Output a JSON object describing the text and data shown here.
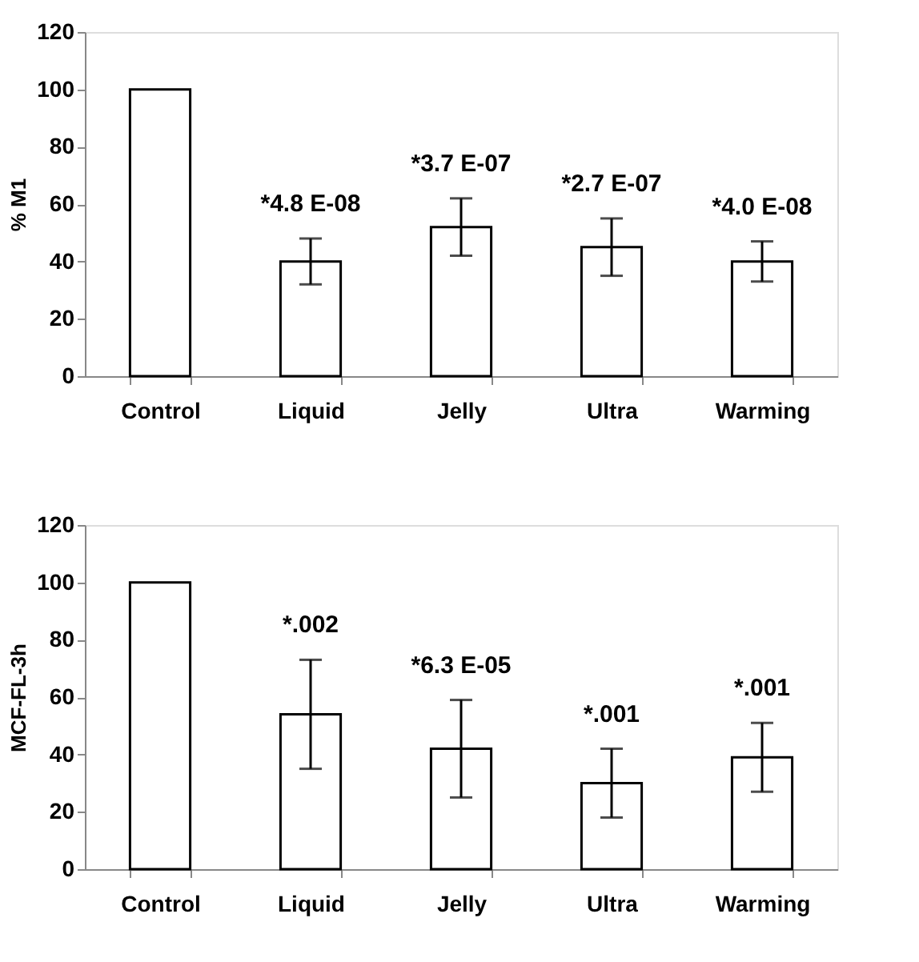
{
  "chart_data": [
    {
      "type": "bar",
      "ylabel": "% M1",
      "categories": [
        "Control",
        "Liquid",
        "Jelly",
        "Ultra",
        "Warming"
      ],
      "values": [
        100,
        40,
        52,
        45,
        40
      ],
      "color": "#ffffff",
      "errors": [
        null,
        [
          32,
          48
        ],
        [
          42,
          62
        ],
        [
          35,
          55
        ],
        [
          33,
          47
        ]
      ],
      "ylim": [
        0,
        120
      ],
      "yticks": [
        0,
        20,
        40,
        60,
        80,
        100,
        120
      ],
      "grid": false,
      "annotations": [
        "*4.8 E-08",
        "*3.7 E-07",
        "*2.7 E-07",
        "*4.0 E-08"
      ]
    },
    {
      "type": "bar",
      "ylabel": "MCF-FL-3h",
      "categories": [
        "Control",
        "Liquid",
        "Jelly",
        "Ultra",
        "Warming"
      ],
      "values": [
        100,
        54,
        42,
        30,
        39
      ],
      "color": "#ffffff",
      "errors": [
        null,
        [
          35,
          73
        ],
        [
          25,
          59
        ],
        [
          18,
          42
        ],
        [
          27,
          51
        ]
      ],
      "ylim": [
        0,
        120
      ],
      "yticks": [
        0,
        20,
        40,
        60,
        80,
        100,
        120
      ],
      "grid": false,
      "annotations": [
        "*.002",
        "*6.3 E-05",
        "*.001",
        "*.001"
      ]
    }
  ]
}
